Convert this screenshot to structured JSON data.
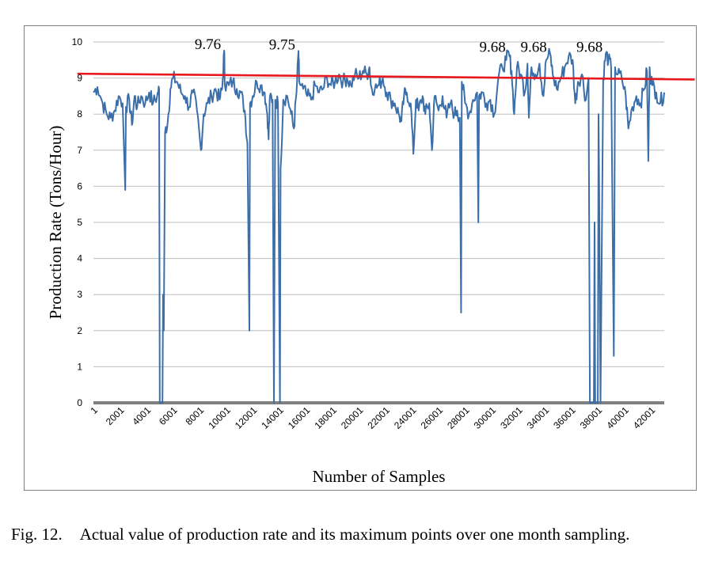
{
  "caption": {
    "number": "Fig. 12.",
    "text": "Actual value of production rate and its maximum points over one month sampling."
  },
  "chart_data": {
    "type": "line",
    "title": "",
    "xlabel": "Number of Samples",
    "ylabel": "Production Rate (Tons/Hour)",
    "xlim": [
      1,
      43001
    ],
    "ylim": [
      0,
      10
    ],
    "y_ticks": [
      "0",
      "1",
      "2",
      "3",
      "4",
      "5",
      "6",
      "7",
      "8",
      "9",
      "10"
    ],
    "x_ticks": [
      {
        "value": 1,
        "label": "1"
      },
      {
        "value": 2001,
        "label": "2001"
      },
      {
        "value": 4001,
        "label": "4001"
      },
      {
        "value": 6001,
        "label": "6001"
      },
      {
        "value": 8001,
        "label": "8001"
      },
      {
        "value": 10001,
        "label": "10001"
      },
      {
        "value": 12001,
        "label": "12001"
      },
      {
        "value": 14001,
        "label": "14001"
      },
      {
        "value": 16001,
        "label": "16001"
      },
      {
        "value": 18001,
        "label": "18001"
      },
      {
        "value": 20001,
        "label": "20001"
      },
      {
        "value": 22001,
        "label": "22001"
      },
      {
        "value": 24001,
        "label": "24001"
      },
      {
        "value": 26001,
        "label": "26001"
      },
      {
        "value": 28001,
        "label": "28001"
      },
      {
        "value": 30001,
        "label": "30001"
      },
      {
        "value": 32001,
        "label": "32001"
      },
      {
        "value": 34001,
        "label": "34001"
      },
      {
        "value": 36001,
        "label": "36001"
      },
      {
        "value": 38001,
        "label": "38001"
      },
      {
        "value": 40001,
        "label": "40001"
      },
      {
        "value": 42001,
        "label": "42001"
      }
    ],
    "grid": true,
    "colors": {
      "series": "#3b6faa",
      "trend": "#e8191e",
      "grid": "#bfbfbf",
      "axis": "#808080"
    },
    "series": [
      {
        "points": [
          [
            1,
            8.6
          ],
          [
            300,
            8.75
          ],
          [
            700,
            8.3
          ],
          [
            1000,
            8.0
          ],
          [
            1300,
            7.9
          ],
          [
            1600,
            8.1
          ],
          [
            1900,
            8.5
          ],
          [
            2200,
            8.3
          ],
          [
            2400,
            5.9
          ],
          [
            2450,
            8.2
          ],
          [
            2700,
            8.4
          ],
          [
            2900,
            7.7
          ],
          [
            3100,
            8.5
          ],
          [
            3300,
            8.2
          ],
          [
            3600,
            8.5
          ],
          [
            3900,
            8.3
          ],
          [
            4200,
            8.6
          ],
          [
            4500,
            8.3
          ],
          [
            4800,
            8.5
          ],
          [
            4950,
            8.7
          ],
          [
            5000,
            0.0
          ],
          [
            5200,
            0.0
          ],
          [
            5250,
            3.0
          ],
          [
            5300,
            2.0
          ],
          [
            5400,
            7.5
          ],
          [
            5600,
            7.8
          ],
          [
            5800,
            8.7
          ],
          [
            6000,
            9.0
          ],
          [
            6300,
            8.9
          ],
          [
            6600,
            8.6
          ],
          [
            6900,
            8.5
          ],
          [
            7200,
            8.2
          ],
          [
            7500,
            8.6
          ],
          [
            7800,
            8.1
          ],
          [
            8100,
            7.0
          ],
          [
            8300,
            8.0
          ],
          [
            8600,
            8.3
          ],
          [
            8900,
            8.5
          ],
          [
            9200,
            8.7
          ],
          [
            9500,
            8.4
          ],
          [
            9700,
            8.7
          ],
          [
            9850,
            9.76
          ],
          [
            9900,
            8.8
          ],
          [
            10200,
            8.8
          ],
          [
            10500,
            8.9
          ],
          [
            10800,
            8.7
          ],
          [
            11100,
            8.6
          ],
          [
            11400,
            8.1
          ],
          [
            11600,
            7.2
          ],
          [
            11750,
            2.0
          ],
          [
            11800,
            8.3
          ],
          [
            12000,
            8.5
          ],
          [
            12300,
            8.9
          ],
          [
            12600,
            8.8
          ],
          [
            12900,
            8.6
          ],
          [
            13100,
            8.0
          ],
          [
            13200,
            7.3
          ],
          [
            13300,
            8.5
          ],
          [
            13500,
            8.4
          ],
          [
            13600,
            0.0
          ],
          [
            13700,
            8.4
          ],
          [
            13900,
            8.3
          ],
          [
            14050,
            0.0
          ],
          [
            14100,
            6.5
          ],
          [
            14300,
            8.4
          ],
          [
            14600,
            8.5
          ],
          [
            14900,
            8.0
          ],
          [
            15100,
            7.6
          ],
          [
            15300,
            8.6
          ],
          [
            15450,
            9.75
          ],
          [
            15500,
            8.9
          ],
          [
            15800,
            8.7
          ],
          [
            16100,
            8.5
          ],
          [
            16400,
            8.4
          ],
          [
            16700,
            8.8
          ],
          [
            17000,
            8.6
          ],
          [
            17300,
            8.7
          ],
          [
            17600,
            9.0
          ],
          [
            17900,
            8.8
          ],
          [
            18200,
            8.9
          ],
          [
            18500,
            9.1
          ],
          [
            18800,
            8.9
          ],
          [
            19100,
            9.0
          ],
          [
            19400,
            8.8
          ],
          [
            19700,
            9.1
          ],
          [
            20000,
            9.0
          ],
          [
            20300,
            9.2
          ],
          [
            20600,
            9.1
          ],
          [
            20800,
            9.3
          ],
          [
            20900,
            8.8
          ],
          [
            21200,
            8.7
          ],
          [
            21500,
            8.8
          ],
          [
            21800,
            9.0
          ],
          [
            22100,
            8.6
          ],
          [
            22400,
            8.4
          ],
          [
            22700,
            8.3
          ],
          [
            23000,
            8.0
          ],
          [
            23200,
            7.8
          ],
          [
            23400,
            8.5
          ],
          [
            23600,
            8.6
          ],
          [
            23900,
            8.3
          ],
          [
            24100,
            6.9
          ],
          [
            24300,
            8.4
          ],
          [
            24500,
            8.1
          ],
          [
            24800,
            8.5
          ],
          [
            25000,
            8.0
          ],
          [
            25300,
            8.3
          ],
          [
            25500,
            7.0
          ],
          [
            25700,
            8.5
          ],
          [
            26000,
            8.1
          ],
          [
            26300,
            8.5
          ],
          [
            26600,
            7.9
          ],
          [
            26900,
            8.3
          ],
          [
            27200,
            8.0
          ],
          [
            27400,
            8.1
          ],
          [
            27600,
            7.9
          ],
          [
            27700,
            2.5
          ],
          [
            27750,
            8.9
          ],
          [
            28000,
            8.3
          ],
          [
            28300,
            8.0
          ],
          [
            28600,
            8.4
          ],
          [
            28900,
            8.6
          ],
          [
            29000,
            5.0
          ],
          [
            29050,
            8.5
          ],
          [
            29300,
            8.6
          ],
          [
            29600,
            8.3
          ],
          [
            29900,
            8.4
          ],
          [
            30200,
            8.0
          ],
          [
            30500,
            9.0
          ],
          [
            30800,
            9.3
          ],
          [
            31100,
            9.5
          ],
          [
            31300,
            9.68
          ],
          [
            31500,
            9.2
          ],
          [
            31700,
            8.0
          ],
          [
            31900,
            9.3
          ],
          [
            32200,
            9.1
          ],
          [
            32500,
            8.6
          ],
          [
            32700,
            9.4
          ],
          [
            32800,
            7.9
          ],
          [
            33000,
            9.3
          ],
          [
            33300,
            9.1
          ],
          [
            33600,
            9.4
          ],
          [
            33900,
            8.5
          ],
          [
            34100,
            9.5
          ],
          [
            34400,
            9.68
          ],
          [
            34600,
            9.1
          ],
          [
            34900,
            8.7
          ],
          [
            35200,
            9.0
          ],
          [
            35500,
            9.3
          ],
          [
            35800,
            9.6
          ],
          [
            36100,
            9.5
          ],
          [
            36300,
            8.3
          ],
          [
            36500,
            8.9
          ],
          [
            36800,
            9.1
          ],
          [
            37100,
            8.4
          ],
          [
            37300,
            9.0
          ],
          [
            37400,
            0.0
          ],
          [
            37700,
            0.0
          ],
          [
            37750,
            5.0
          ],
          [
            37800,
            0.0
          ],
          [
            38000,
            0.0
          ],
          [
            38050,
            8.0
          ],
          [
            38100,
            6.0
          ],
          [
            38200,
            0.0
          ],
          [
            38300,
            4.5
          ],
          [
            38400,
            9.0
          ],
          [
            38600,
            9.68
          ],
          [
            38800,
            9.5
          ],
          [
            39000,
            9.3
          ],
          [
            39200,
            1.3
          ],
          [
            39300,
            9.3
          ],
          [
            39500,
            9.1
          ],
          [
            39800,
            9.0
          ],
          [
            40100,
            8.5
          ],
          [
            40300,
            7.6
          ],
          [
            40600,
            8.2
          ],
          [
            40900,
            8.5
          ],
          [
            41200,
            8.3
          ],
          [
            41500,
            8.7
          ],
          [
            41700,
            9.2
          ],
          [
            41800,
            6.7
          ],
          [
            41900,
            9.3
          ],
          [
            42100,
            8.8
          ],
          [
            42400,
            8.6
          ],
          [
            42700,
            8.3
          ],
          [
            43000,
            8.6
          ]
        ]
      }
    ],
    "trend_line": {
      "x": [
        -1200,
        45300
      ],
      "y": [
        9.12,
        8.96
      ]
    },
    "annotations": [
      {
        "text": "9.76",
        "x": 9850,
        "y": 9.76
      },
      {
        "text": "9.75",
        "x": 15450,
        "y": 9.75
      },
      {
        "text": "9.68",
        "x": 31300,
        "y": 9.68
      },
      {
        "text": "9.68",
        "x": 34400,
        "y": 9.68
      },
      {
        "text": "9.68",
        "x": 38600,
        "y": 9.68
      }
    ]
  }
}
